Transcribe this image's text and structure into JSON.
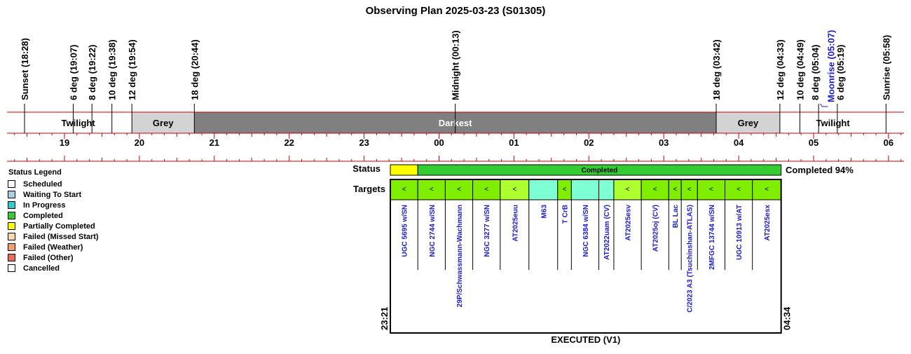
{
  "chart_data": {
    "type": "timeline",
    "title": "Observing Plan 2025-03-23 (S01305)",
    "events": [
      {
        "label": "Sunset (18:28)",
        "time": "18:28"
      },
      {
        "label": "6 deg (19:07)",
        "time": "19:07"
      },
      {
        "label": "8 deg (19:22)",
        "time": "19:22"
      },
      {
        "label": "10 deg (19:38)",
        "time": "19:38"
      },
      {
        "label": "12 deg (19:54)",
        "time": "19:54"
      },
      {
        "label": "18 deg (20:44)",
        "time": "20:44"
      },
      {
        "label": "Midnight (00:13)",
        "time": "00:13"
      },
      {
        "label": "18 deg (03:42)",
        "time": "03:42"
      },
      {
        "label": "12 deg (04:33)",
        "time": "04:33"
      },
      {
        "label": "10 deg (04:49)",
        "time": "04:49"
      },
      {
        "label": "8 deg (05:04)",
        "time": "05:04"
      },
      {
        "label": "Moonrise (05:07)",
        "time": "05:07",
        "moon": true
      },
      {
        "label": "6 deg (05:19)",
        "time": "05:19"
      },
      {
        "label": "Sunrise (05:58)",
        "time": "05:58"
      }
    ],
    "bands": [
      {
        "label": "Twilight",
        "start": "18:28",
        "end": "19:54",
        "color": "#ffffff"
      },
      {
        "label": "Grey",
        "start": "19:54",
        "end": "20:44",
        "color": "#d3d3d3"
      },
      {
        "label": "Darkest",
        "start": "20:44",
        "end": "03:42",
        "color": "#808080"
      },
      {
        "label": "Grey",
        "start": "03:42",
        "end": "04:33",
        "color": "#d3d3d3"
      },
      {
        "label": "Twilight",
        "start": "04:33",
        "end": "05:58",
        "color": "#ffffff"
      }
    ],
    "hour_ticks": [
      "19",
      "20",
      "21",
      "22",
      "23",
      "00",
      "01",
      "02",
      "03",
      "04",
      "05",
      "06"
    ],
    "status_label": "Status",
    "targets_label": "Targets",
    "status_segments": [
      {
        "start": "23:21",
        "end": "23:43",
        "status": "Partially Completed",
        "text": ""
      },
      {
        "start": "23:43",
        "end": "04:34",
        "status": "Completed",
        "text": "Completed"
      }
    ],
    "completion_text": "Completed 94%",
    "targets": [
      {
        "name": "UGC 5695 w/SN",
        "start": "23:21",
        "end": "23:43",
        "status": "Completed",
        "mark": "<"
      },
      {
        "name": "NGC 2744 w/SN",
        "start": "23:43",
        "end": "00:05",
        "status": "Completed",
        "mark": "<"
      },
      {
        "name": "29P/Schwassmann-Wachmann",
        "start": "00:05",
        "end": "00:27",
        "status": "Completed",
        "mark": "<"
      },
      {
        "name": "NGC 3277 w/SN",
        "start": "00:27",
        "end": "00:49",
        "status": "Completed",
        "mark": "<"
      },
      {
        "name": "AT2025euu",
        "start": "00:49",
        "end": "01:12",
        "status": "Completed-Light",
        "mark": "<"
      },
      {
        "name": "M63",
        "start": "01:12",
        "end": "01:35",
        "status": "Completed-Cyan",
        "mark": ""
      },
      {
        "name": "T CrB",
        "start": "01:35",
        "end": "01:46",
        "status": "Completed",
        "mark": "<"
      },
      {
        "name": "NGC 6384 w/SN",
        "start": "01:46",
        "end": "02:08",
        "status": "Completed-Cyan",
        "mark": ""
      },
      {
        "name": "AT2022uam (CV)",
        "start": "02:08",
        "end": "02:20",
        "status": "Completed-Cyan",
        "mark": ""
      },
      {
        "name": "AT2025esv",
        "start": "02:20",
        "end": "02:42",
        "status": "Completed-Light",
        "mark": "<"
      },
      {
        "name": "AT2025oj (CV)",
        "start": "02:42",
        "end": "03:04",
        "status": "Completed",
        "mark": "<"
      },
      {
        "name": "BL Lac",
        "start": "03:04",
        "end": "03:14",
        "status": "Completed",
        "mark": "<"
      },
      {
        "name": "C/2023 A3 (Tsuchinshan-ATLAS)",
        "start": "03:14",
        "end": "03:27",
        "status": "Completed",
        "mark": "<"
      },
      {
        "name": "2MFGC 13744 w/SN",
        "start": "03:27",
        "end": "03:49",
        "status": "Completed",
        "mark": "<"
      },
      {
        "name": "UGC 10913 w/AT",
        "start": "03:49",
        "end": "04:11",
        "status": "Completed",
        "mark": "<"
      },
      {
        "name": "AT2025esx",
        "start": "04:11",
        "end": "04:34",
        "status": "Completed",
        "mark": "<"
      }
    ],
    "exec_start": "23:21",
    "exec_end": "04:34",
    "footer": "EXECUTED (V1)",
    "legend": {
      "title": "Status Legend",
      "items": [
        {
          "label": "Scheduled",
          "color": "#ffffff"
        },
        {
          "label": "Waiting To Start",
          "color": "#a9cfe6"
        },
        {
          "label": "In Progress",
          "color": "#33cccc"
        },
        {
          "label": "Completed",
          "color": "#33cc33"
        },
        {
          "label": "Partially Completed",
          "color": "#ffff00"
        },
        {
          "label": "Failed (Missed Start)",
          "color": "#ffd9a8"
        },
        {
          "label": "Failed (Weather)",
          "color": "#f4a070"
        },
        {
          "label": "Failed (Other)",
          "color": "#ee6a5a"
        },
        {
          "label": "Cancelled",
          "color": "#ffffff"
        }
      ]
    },
    "colors": {
      "completed": "#33cc33",
      "completed_target": "#80ee00",
      "completed_light": "#adff2f",
      "completed_cyan": "#7fffd4",
      "partial": "#ffff00",
      "axis_red": "#cc0000",
      "darkest": "#808080",
      "grey": "#d3d3d3",
      "moon": "#1a1acc"
    }
  }
}
